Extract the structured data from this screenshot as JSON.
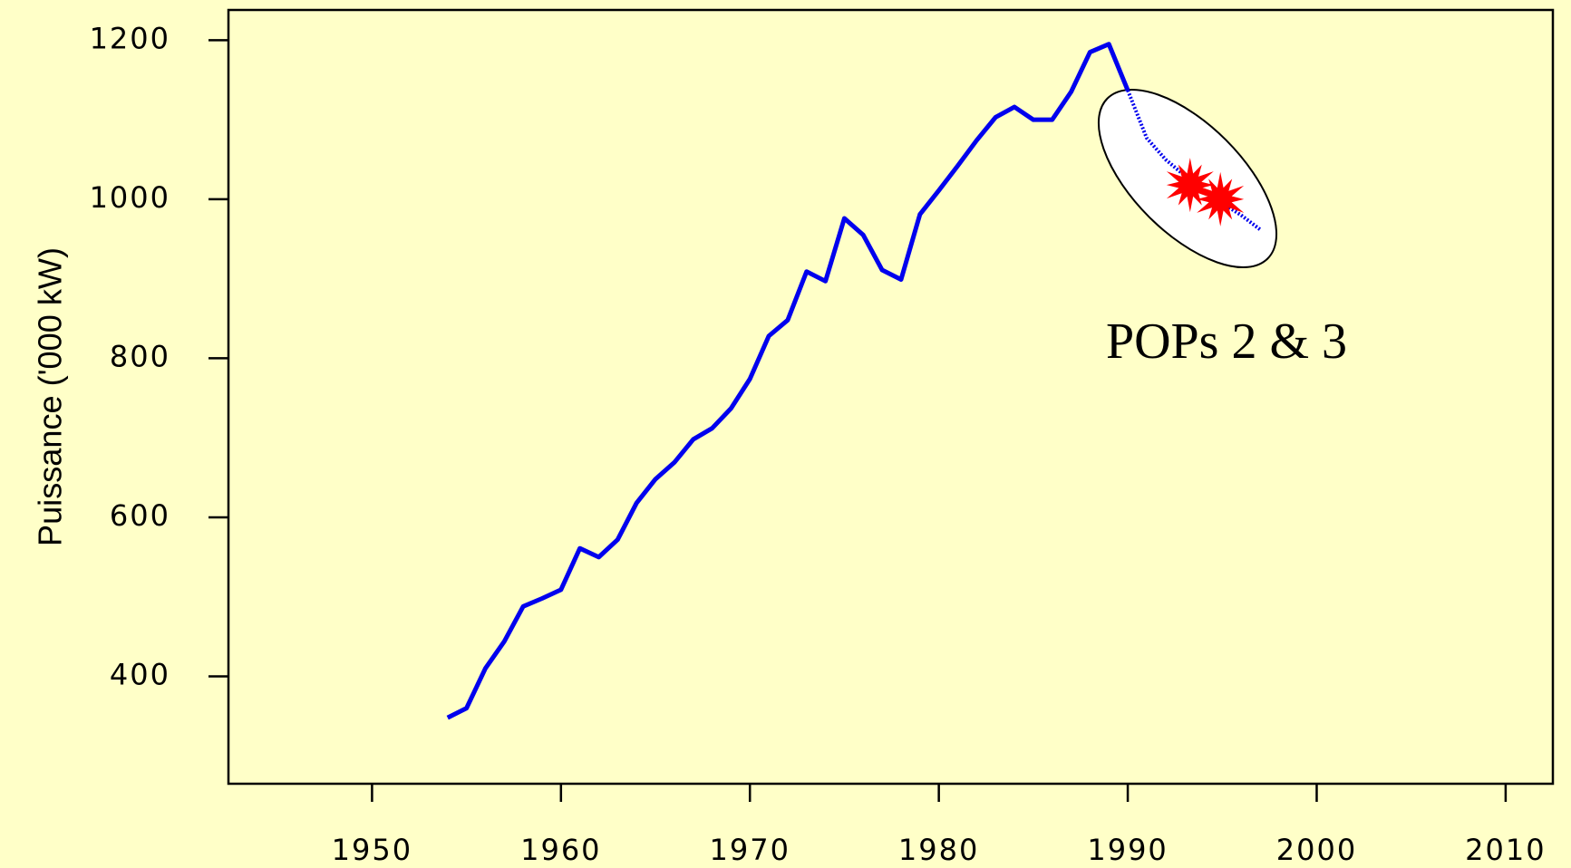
{
  "chart_data": {
    "type": "line",
    "y_label": "Puissance ('000 kW)",
    "annotation": "POPs 2 & 3",
    "x": [
      1954,
      1955,
      1956,
      1957,
      1958,
      1959,
      1960,
      1961,
      1962,
      1963,
      1964,
      1965,
      1966,
      1967,
      1968,
      1969,
      1970,
      1971,
      1972,
      1973,
      1974,
      1975,
      1976,
      1977,
      1978,
      1979,
      1980,
      1981,
      1982,
      1983,
      1984,
      1985,
      1986,
      1987,
      1988,
      1989,
      1990,
      1991,
      1992,
      1993,
      1994,
      1995,
      1996,
      1997
    ],
    "series": [
      {
        "color": "#0000ee",
        "style": "solid",
        "values": [
          348,
          360,
          410,
          444,
          488,
          498,
          509,
          561,
          550,
          572,
          618,
          648,
          669,
          698,
          712,
          737,
          774,
          828,
          848,
          909,
          897,
          976,
          955,
          911,
          899,
          981,
          1011,
          1042,
          1074,
          1103,
          1116,
          1100,
          1100,
          1135,
          1185,
          1195,
          1137,
          null,
          null,
          null,
          null,
          null,
          null,
          null
        ]
      },
      {
        "color": "#0000ee",
        "style": "dotted",
        "values": [
          null,
          null,
          null,
          null,
          null,
          null,
          null,
          null,
          null,
          null,
          null,
          null,
          null,
          null,
          null,
          null,
          null,
          null,
          null,
          null,
          null,
          null,
          null,
          null,
          null,
          null,
          null,
          null,
          null,
          null,
          null,
          null,
          null,
          null,
          null,
          null,
          1137,
          1077,
          1050,
          1030,
          1010,
          995,
          980,
          962
        ]
      }
    ],
    "markers": {
      "color": "#ff0000",
      "x": [
        1993.3,
        1994.9
      ],
      "y": [
        1018,
        1000
      ]
    },
    "xlim": [
      1942.4,
      2012.5
    ],
    "ylim": [
      265,
      1238
    ],
    "xticks": [
      1950,
      1960,
      1970,
      1980,
      1990,
      2000,
      2010
    ],
    "yticks": [
      400,
      600,
      800,
      1000,
      1200
    ]
  }
}
